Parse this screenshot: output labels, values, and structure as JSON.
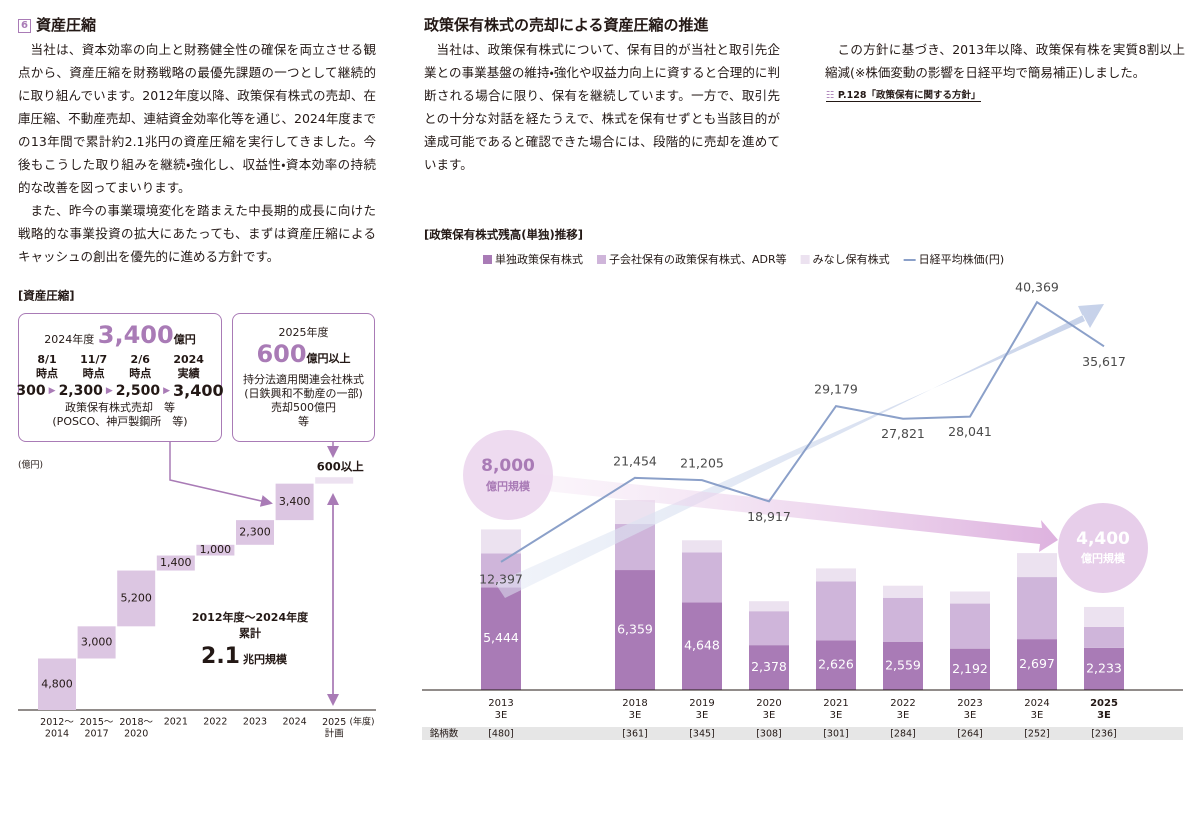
{
  "left": {
    "section_number": "6",
    "heading": "資産圧縮",
    "paragraphs": [
      "当社は、資本効率の向上と財務健全性の確保を両立させる観点から、資産圧縮を財務戦略の最優先課題の一つとして継続的に取り組んでいます。2012年度以降、政策保有株式の売却、在庫圧縮、不動産売却、連結資金効率化等を通じ、2024年度までの13年間で累計約2.1兆円の資産圧縮を実行してきました。今後もこうした取り組みを継続・強化し、収益性・資本効率の持続的な改善を図ってまいります。",
      "また、昨今の事業環境変化を踏まえた中長期的成長に向けた戦略的な事業投資の拡大にあたっても、まずは資産圧縮によるキャッシュの創出を優先的に進める方針です。"
    ]
  },
  "middle": {
    "heading": "政策保有株式の売却による資産圧縮の推進",
    "paragraph": "当社は、政策保有株式について、保有目的が当社と取引先企業との事業基盤の維持・強化や収益力向上に資すると合理的に判断される場合に限り、保有を継続しています。一方で、取引先との十分な対話を経たうえで、株式を保有せずとも当該目的が達成可能であると確認できた場合には、段階的に売却を進めています。"
  },
  "right": {
    "paragraph": "この方針に基づき、2013年以降、政策保有株を実質8割以上縮減(※株価変動の影響を日経平均で簡易補正)しました。",
    "reference": "P.128「政策保有に関する方針」"
  },
  "chart_data": [
    {
      "type": "waterfall",
      "title": "[資産圧縮]",
      "unit": "(億円)",
      "x_unit": "(年度)",
      "categories": [
        "2012～\n2014",
        "2015～\n2017",
        "2018～\n2020",
        "2021",
        "2022",
        "2023",
        "2024",
        "2025\n計画"
      ],
      "values": [
        4800,
        3000,
        5200,
        1400,
        1000,
        2300,
        3400,
        600
      ],
      "value_labels": [
        "4,800",
        "3,000",
        "5,200",
        "1,400",
        "1,000",
        "2,300",
        "3,400",
        "600以上"
      ],
      "colors": [
        "#dcc6e2",
        "#dcc6e2",
        "#dcc6e2",
        "#dcc6e2",
        "#dcc6e2",
        "#dcc6e2",
        "#dcc6e2",
        "#ede2f1"
      ],
      "ylim": [
        0,
        22000
      ],
      "total": {
        "period": "2012年度～2024年度",
        "label": "累計",
        "value": "2.1",
        "unit": "兆円規模"
      },
      "callouts": [
        {
          "year": "2024年度",
          "amount": "3,400",
          "unit": "億円",
          "steps": [
            {
              "date": "8/1\n時点",
              "value": "300"
            },
            {
              "date": "11/7\n時点",
              "value": "2,300"
            },
            {
              "date": "2/6\n時点",
              "value": "2,500"
            },
            {
              "date": "2024\n実績",
              "value": "3,400"
            }
          ],
          "notes": [
            "政策保有株式売却　等",
            "(POSCO、神戸製鋼所　等)"
          ]
        },
        {
          "year": "2025年度",
          "amount": "600",
          "unit": "億円以上",
          "notes": [
            "持分法適用関連会社株式",
            "(日鉄興和不動産の一部)",
            "売却500億円",
            "等"
          ]
        }
      ]
    },
    {
      "type": "combo",
      "title": "[政策保有株式残高(単独)推移]",
      "categories": [
        "2013\n3E",
        "2018\n3E",
        "2019\n3E",
        "2020\n3E",
        "2021\n3E",
        "2022\n3E",
        "2023\n3E",
        "2024\n3E",
        "2025\n3E"
      ],
      "highlight_index": 8,
      "series": [
        {
          "name": "単独政策保有株式",
          "color": "#a97bb6",
          "type": "bar",
          "values": [
            5444,
            6359,
            4648,
            2378,
            2626,
            2559,
            2192,
            2697,
            2233
          ],
          "value_labels": [
            "5,444",
            "6,359",
            "4,648",
            "2,378",
            "2,626",
            "2,559",
            "2,192",
            "2,697",
            "2,233"
          ]
        },
        {
          "name": "子会社保有の政策保有株式、ADR等",
          "color": "#cfb5da",
          "type": "bar",
          "values": [
            1800,
            2440,
            2650,
            1800,
            3130,
            2330,
            2390,
            3290,
            1110
          ]
        },
        {
          "name": "みなし保有株式",
          "color": "#ece2f0",
          "type": "bar",
          "values": [
            1270,
            1270,
            640,
            530,
            690,
            640,
            640,
            1270,
            1060
          ]
        },
        {
          "name": "日経平均株価(円)",
          "color": "#8ba0c9",
          "type": "line",
          "axis": "y2",
          "values": [
            12397,
            21454,
            21205,
            18917,
            29179,
            27821,
            28041,
            40369,
            35617
          ],
          "value_labels": [
            "12,397",
            "21,454",
            "21,205",
            "18,917",
            "29,179",
            "27,821",
            "28,041",
            "40,369",
            "35,617"
          ]
        }
      ],
      "ylim": [
        0,
        22000
      ],
      "y2lim": [
        -1400,
        43300
      ],
      "counts_label": "銘柄数",
      "counts": [
        "[480]",
        "[361]",
        "[345]",
        "[308]",
        "[301]",
        "[284]",
        "[264]",
        "[252]",
        "[236]"
      ],
      "annotations": [
        {
          "value": "8,000",
          "unit": "億円規模"
        },
        {
          "value": "4,400",
          "unit": "億円規模"
        }
      ]
    }
  ]
}
